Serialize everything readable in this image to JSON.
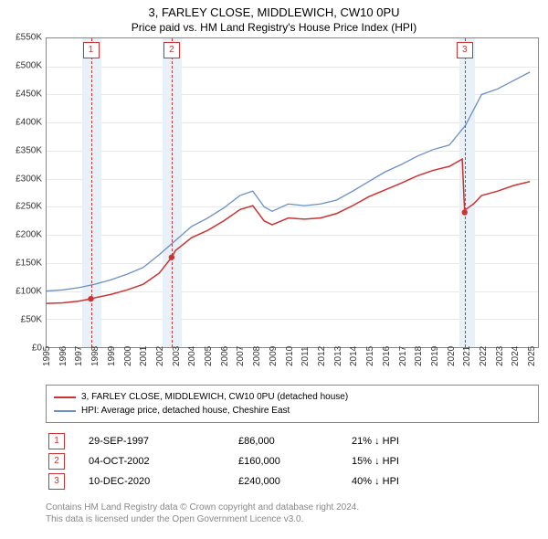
{
  "title": "3, FARLEY CLOSE, MIDDLEWICH, CW10 0PU",
  "subtitle": "Price paid vs. HM Land Registry's House Price Index (HPI)",
  "chart": {
    "type": "line",
    "x_min": 1995,
    "x_max": 2025.5,
    "y_min": 0,
    "y_max": 550000,
    "y_ticks": [
      0,
      50000,
      100000,
      150000,
      200000,
      250000,
      300000,
      350000,
      400000,
      450000,
      500000,
      550000
    ],
    "y_tick_labels": [
      "£0",
      "£50K",
      "£100K",
      "£150K",
      "£200K",
      "£250K",
      "£300K",
      "£350K",
      "£400K",
      "£450K",
      "£500K",
      "£550K"
    ],
    "x_ticks": [
      1995,
      1996,
      1997,
      1998,
      1999,
      2000,
      2001,
      2002,
      2003,
      2004,
      2005,
      2006,
      2007,
      2008,
      2009,
      2010,
      2011,
      2012,
      2013,
      2014,
      2015,
      2016,
      2017,
      2018,
      2019,
      2020,
      2021,
      2022,
      2023,
      2024,
      2025
    ],
    "grid_color": "#e8e8e8",
    "border_color": "#888888",
    "plot_bg": "#ffffff",
    "event_band_color": "#e8f0f8",
    "event_line_color": "#cc3333",
    "series": [
      {
        "name": "hpi",
        "color": "#6a8fc5",
        "width": 1.3,
        "points": [
          [
            1995,
            100000
          ],
          [
            1996,
            102000
          ],
          [
            1997,
            106000
          ],
          [
            1998,
            112000
          ],
          [
            1999,
            120000
          ],
          [
            2000,
            130000
          ],
          [
            2001,
            142000
          ],
          [
            2002,
            165000
          ],
          [
            2003,
            190000
          ],
          [
            2004,
            215000
          ],
          [
            2005,
            230000
          ],
          [
            2006,
            248000
          ],
          [
            2007,
            270000
          ],
          [
            2007.8,
            278000
          ],
          [
            2008.5,
            250000
          ],
          [
            2009,
            242000
          ],
          [
            2010,
            255000
          ],
          [
            2011,
            252000
          ],
          [
            2012,
            255000
          ],
          [
            2013,
            262000
          ],
          [
            2014,
            278000
          ],
          [
            2015,
            295000
          ],
          [
            2016,
            312000
          ],
          [
            2017,
            325000
          ],
          [
            2018,
            340000
          ],
          [
            2019,
            352000
          ],
          [
            2020,
            360000
          ],
          [
            2021,
            395000
          ],
          [
            2022,
            450000
          ],
          [
            2023,
            460000
          ],
          [
            2024,
            475000
          ],
          [
            2025,
            490000
          ]
        ]
      },
      {
        "name": "price_paid",
        "color": "#cc3333",
        "width": 1.5,
        "points": [
          [
            1995,
            78000
          ],
          [
            1996,
            79000
          ],
          [
            1997,
            82000
          ],
          [
            1997.75,
            86000
          ],
          [
            1998,
            88000
          ],
          [
            1999,
            94000
          ],
          [
            2000,
            102000
          ],
          [
            2001,
            112000
          ],
          [
            2002,
            132000
          ],
          [
            2002.76,
            160000
          ],
          [
            2003,
            172000
          ],
          [
            2004,
            195000
          ],
          [
            2005,
            208000
          ],
          [
            2006,
            225000
          ],
          [
            2007,
            245000
          ],
          [
            2007.8,
            252000
          ],
          [
            2008.5,
            225000
          ],
          [
            2009,
            218000
          ],
          [
            2010,
            230000
          ],
          [
            2011,
            228000
          ],
          [
            2012,
            230000
          ],
          [
            2013,
            238000
          ],
          [
            2014,
            252000
          ],
          [
            2015,
            268000
          ],
          [
            2016,
            280000
          ],
          [
            2017,
            292000
          ],
          [
            2018,
            305000
          ],
          [
            2019,
            315000
          ],
          [
            2020,
            322000
          ],
          [
            2020.8,
            335000
          ],
          [
            2020.95,
            240000
          ],
          [
            2021,
            245000
          ],
          [
            2021.5,
            255000
          ],
          [
            2022,
            270000
          ],
          [
            2023,
            278000
          ],
          [
            2024,
            288000
          ],
          [
            2025,
            295000
          ]
        ]
      }
    ],
    "markers": [
      {
        "series": "price_paid",
        "x": 1997.75,
        "y": 86000,
        "color": "#cc3333"
      },
      {
        "series": "price_paid",
        "x": 2002.76,
        "y": 160000,
        "color": "#cc3333"
      },
      {
        "series": "price_paid",
        "x": 2020.95,
        "y": 240000,
        "color": "#cc3333"
      }
    ],
    "event_bands": [
      {
        "from": 1997.2,
        "to": 1998.4
      },
      {
        "from": 2002.2,
        "to": 2003.4
      },
      {
        "from": 2020.6,
        "to": 2021.6
      }
    ],
    "event_lines": [
      {
        "x": 1997.75,
        "label": "1"
      },
      {
        "x": 2002.76,
        "label": "2"
      },
      {
        "x": 2020.95,
        "label": "3"
      }
    ]
  },
  "legend": {
    "items": [
      {
        "label": "3, FARLEY CLOSE, MIDDLEWICH, CW10 0PU (detached house)",
        "color": "#cc3333"
      },
      {
        "label": "HPI: Average price, detached house, Cheshire East",
        "color": "#6a8fc5"
      }
    ]
  },
  "events_table": {
    "rows": [
      {
        "num": "1",
        "date": "29-SEP-1997",
        "price": "£86,000",
        "diff": "21% ↓ HPI"
      },
      {
        "num": "2",
        "date": "04-OCT-2002",
        "price": "£160,000",
        "diff": "15% ↓ HPI"
      },
      {
        "num": "3",
        "date": "10-DEC-2020",
        "price": "£240,000",
        "diff": "40% ↓ HPI"
      }
    ]
  },
  "footer": {
    "line1": "Contains HM Land Registry data © Crown copyright and database right 2024.",
    "line2": "This data is licensed under the Open Government Licence v3.0."
  }
}
